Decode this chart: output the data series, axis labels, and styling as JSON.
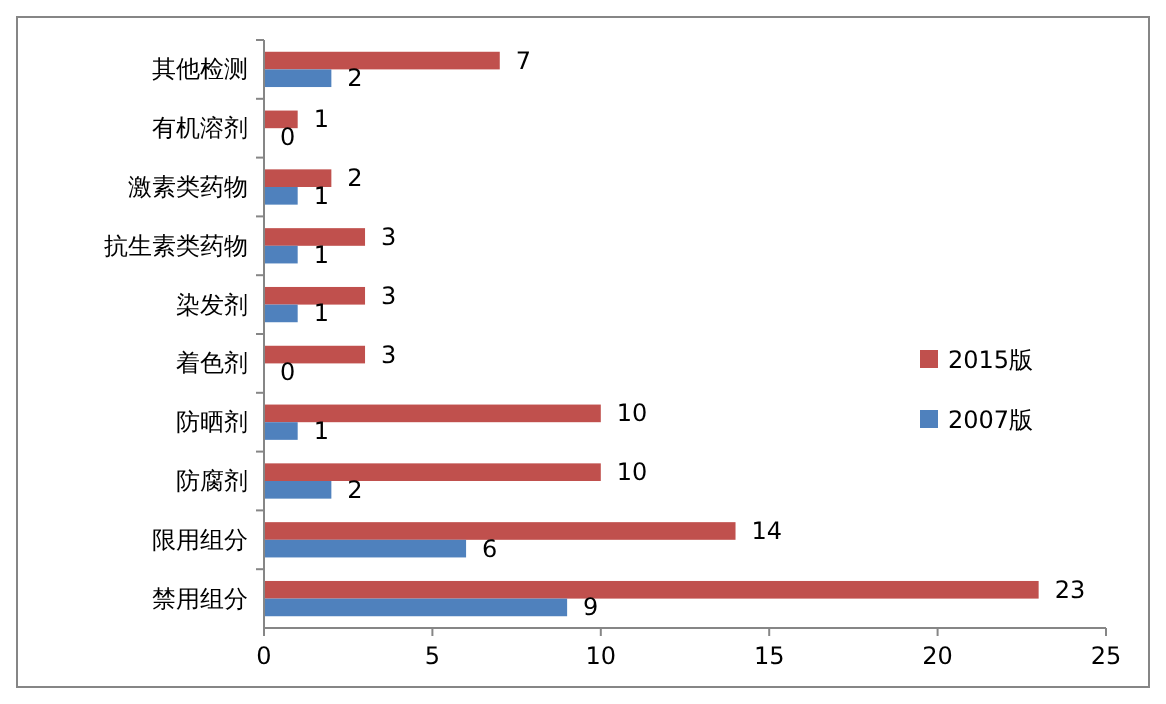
{
  "chart_data": {
    "type": "bar",
    "orientation": "horizontal",
    "categories": [
      "其他检测",
      "有机溶剂",
      "激素类药物",
      "抗生素类药物",
      "染发剂",
      "着色剂",
      "防晒剂",
      "防腐剂",
      "限用组分",
      "禁用组分"
    ],
    "series": [
      {
        "name": "2015版",
        "color": "#c0504d",
        "values": [
          7,
          1,
          2,
          3,
          3,
          3,
          10,
          10,
          14,
          23
        ]
      },
      {
        "name": "2007版",
        "color": "#4f81bd",
        "values": [
          2,
          0,
          1,
          1,
          1,
          0,
          1,
          2,
          6,
          9
        ]
      }
    ],
    "xlim": [
      0,
      25
    ],
    "xticks": [
      0,
      5,
      10,
      15,
      20,
      25
    ],
    "data_labels": true,
    "legend": "right",
    "grid": false
  }
}
